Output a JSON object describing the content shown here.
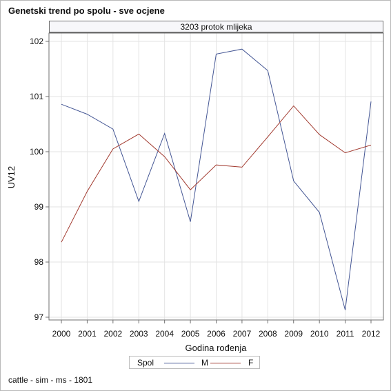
{
  "chart_data": {
    "type": "line",
    "title": "Genetski trend po spolu - sve ocjene",
    "panel_label": "3203 protok mlijeka",
    "xlabel": "Godina rođenja",
    "ylabel": "UV12",
    "x": [
      2000,
      2001,
      2002,
      2003,
      2004,
      2005,
      2006,
      2007,
      2008,
      2009,
      2010,
      2011,
      2012
    ],
    "xlim": [
      2000,
      2012
    ],
    "ylim": [
      96.95,
      102.15
    ],
    "yticks": [
      97,
      98,
      99,
      100,
      101,
      102
    ],
    "grid": true,
    "legend": {
      "title": "Spol",
      "position": "bottom"
    },
    "series": [
      {
        "name": "M",
        "color": "#445694",
        "values": [
          100.86,
          100.68,
          100.41,
          99.1,
          100.33,
          98.73,
          101.77,
          101.86,
          101.47,
          99.47,
          98.9,
          97.13,
          100.91
        ]
      },
      {
        "name": "F",
        "color": "#a23a2f",
        "values": [
          98.36,
          99.28,
          100.05,
          100.32,
          99.91,
          99.31,
          99.76,
          99.72,
          100.27,
          100.83,
          100.31,
          99.98,
          100.12
        ]
      }
    ],
    "footnote": "cattle - sim - ms - 1801"
  }
}
